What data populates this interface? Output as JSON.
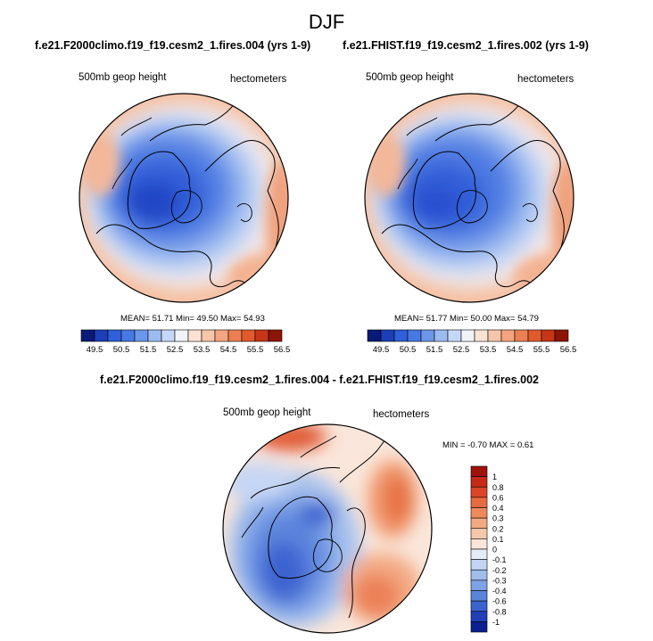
{
  "figure": {
    "title": "DJF"
  },
  "chart_data": [
    {
      "type": "contour",
      "panel": "top-left",
      "title": "f.e21.F2000climo.f19_f19.cesm2_1.fires.004 (yrs 1-9)",
      "left_label": "500mb geop height",
      "right_label": "hectometers",
      "stats_text": "MEAN=  51.71  Min=  49.50  Max=  54.93",
      "mean": 51.71,
      "min": 49.5,
      "max": 54.93,
      "colorbar_ticks": [
        "49.5",
        "50.5",
        "51.5",
        "52.5",
        "53.5",
        "54.5",
        "55.5",
        "56.5"
      ],
      "colorbar_colors": [
        "#0a1a78",
        "#1b3fb8",
        "#2f5fd9",
        "#4779e3",
        "#6c96ea",
        "#9cbbf1",
        "#c6d8f6",
        "#f0f4fa",
        "#fbe3d4",
        "#f7c6aa",
        "#f3a57f",
        "#ec7f53",
        "#e25a2c",
        "#c73517",
        "#8e1408"
      ]
    },
    {
      "type": "contour",
      "panel": "top-right",
      "title": "f.e21.FHIST.f19_f19.cesm2_1.fires.002 (yrs 1-9)",
      "left_label": "500mb geop height",
      "right_label": "hectometers",
      "stats_text": "MEAN=  51.77  Min=  50.00  Max=  54.79",
      "mean": 51.77,
      "min": 50.0,
      "max": 54.79,
      "colorbar_ticks": [
        "49.5",
        "50.5",
        "51.5",
        "52.5",
        "53.5",
        "54.5",
        "55.5",
        "56.5"
      ],
      "colorbar_colors": [
        "#0a1a78",
        "#1b3fb8",
        "#2f5fd9",
        "#4779e3",
        "#6c96ea",
        "#9cbbf1",
        "#c6d8f6",
        "#f0f4fa",
        "#fbe3d4",
        "#f7c6aa",
        "#f3a57f",
        "#ec7f53",
        "#e25a2c",
        "#c73517",
        "#8e1408"
      ]
    },
    {
      "type": "contour",
      "panel": "bottom-difference",
      "title": "f.e21.F2000climo.f19_f19.cesm2_1.fires.004 - f.e21.FHIST.f19_f19.cesm2_1.fires.002",
      "left_label": "500mb geop height",
      "right_label": "hectometers",
      "stats_text": "MIN = -0.70 MAX =   0.61",
      "min": -0.7,
      "max": 0.61,
      "colorbar_ticks": [
        "1",
        "0.8",
        "0.6",
        "0.4",
        "0.3",
        "0.2",
        "0.1",
        "0",
        "-0.1",
        "-0.2",
        "-0.3",
        "-0.4",
        "-0.6",
        "-0.8",
        "-1"
      ],
      "colorbar_colors": [
        "#a1120a",
        "#c52a17",
        "#dc4528",
        "#ea6a3f",
        "#f08a5c",
        "#f3aa83",
        "#f6c8ab",
        "#fae6da",
        "#e4ecf8",
        "#c3d5f2",
        "#a0bdec",
        "#7da2e5",
        "#5a84dc",
        "#3b63cf",
        "#2040b8",
        "#0c1f8f"
      ]
    }
  ]
}
